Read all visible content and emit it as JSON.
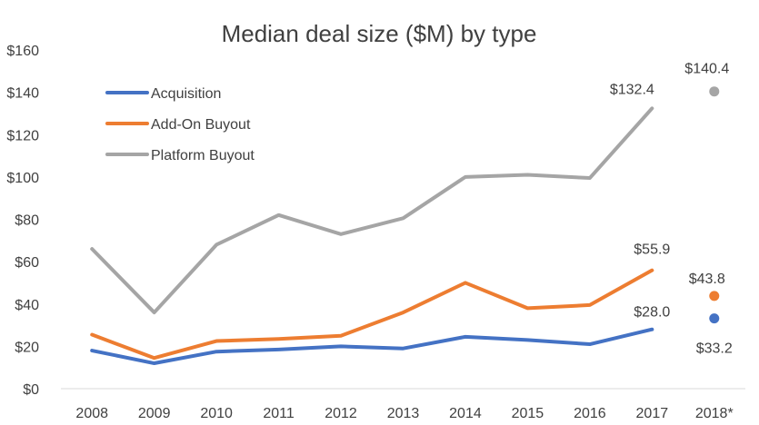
{
  "chart_data": {
    "type": "line",
    "title": "Median deal size ($M) by type",
    "xlabel": "",
    "ylabel": "",
    "categories": [
      "2008",
      "2009",
      "2010",
      "2011",
      "2012",
      "2013",
      "2014",
      "2015",
      "2016",
      "2017",
      "2018*"
    ],
    "y_ticks": [
      "$0",
      "$20",
      "$40",
      "$60",
      "$80",
      "$100",
      "$120",
      "$140",
      "$160"
    ],
    "ylim": [
      0,
      160
    ],
    "grid": false,
    "legend": "top-left",
    "series": [
      {
        "name": "Acquisition",
        "color": "#4472c4",
        "values": [
          18.0,
          12.0,
          17.5,
          18.5,
          20.0,
          19.0,
          24.5,
          23.0,
          21.0,
          28.0,
          33.2
        ],
        "labels": {
          "9": "$28.0",
          "10": "$33.2"
        }
      },
      {
        "name": "Add-On Buyout",
        "color": "#ed7d31",
        "values": [
          25.5,
          14.5,
          22.5,
          23.5,
          25.0,
          36.0,
          50.0,
          38.0,
          39.5,
          55.9,
          43.8
        ],
        "labels": {
          "9": "$55.9",
          "10": "$43.8"
        }
      },
      {
        "name": "Platform Buyout",
        "color": "#a5a5a5",
        "values": [
          66.0,
          36.0,
          68.0,
          82.0,
          73.0,
          80.5,
          100.0,
          101.0,
          99.5,
          132.4,
          140.4
        ],
        "labels": {
          "9": "$132.4",
          "10": "$140.4"
        }
      }
    ]
  }
}
